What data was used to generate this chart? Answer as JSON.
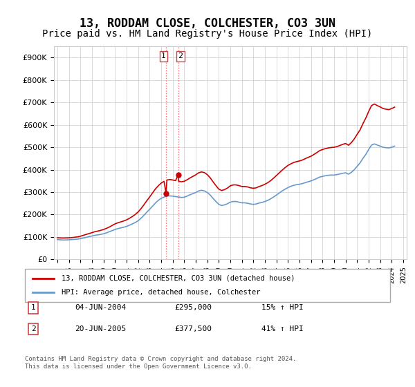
{
  "title": "13, RODDAM CLOSE, COLCHESTER, CO3 3UN",
  "subtitle": "Price paid vs. HM Land Registry's House Price Index (HPI)",
  "title_fontsize": 12,
  "subtitle_fontsize": 10,
  "ylim": [
    0,
    950000
  ],
  "yticks": [
    0,
    100000,
    200000,
    300000,
    400000,
    500000,
    600000,
    700000,
    800000,
    900000
  ],
  "ytick_labels": [
    "£0",
    "£100K",
    "£200K",
    "£300K",
    "£400K",
    "£500K",
    "£600K",
    "£700K",
    "£800K",
    "£900K"
  ],
  "red_color": "#cc0000",
  "blue_color": "#6699cc",
  "vline_color": "#ff6666",
  "vline_style": ":",
  "legend_red_label": "13, RODDAM CLOSE, COLCHESTER, CO3 3UN (detached house)",
  "legend_blue_label": "HPI: Average price, detached house, Colchester",
  "transaction1_label": "1",
  "transaction1_date": "04-JUN-2004",
  "transaction1_price": "£295,000",
  "transaction1_hpi": "15% ↑ HPI",
  "transaction1_year": 2004.42,
  "transaction1_value": 295000,
  "transaction2_label": "2",
  "transaction2_date": "20-JUN-2005",
  "transaction2_price": "£377,500",
  "transaction2_hpi": "41% ↑ HPI",
  "transaction2_year": 2005.47,
  "transaction2_value": 377500,
  "footnote": "Contains HM Land Registry data © Crown copyright and database right 2024.\nThis data is licensed under the Open Government Licence v3.0.",
  "hpi_data": {
    "years": [
      1995.0,
      1995.25,
      1995.5,
      1995.75,
      1996.0,
      1996.25,
      1996.5,
      1996.75,
      1997.0,
      1997.25,
      1997.5,
      1997.75,
      1998.0,
      1998.25,
      1998.5,
      1998.75,
      1999.0,
      1999.25,
      1999.5,
      1999.75,
      2000.0,
      2000.25,
      2000.5,
      2000.75,
      2001.0,
      2001.25,
      2001.5,
      2001.75,
      2002.0,
      2002.25,
      2002.5,
      2002.75,
      2003.0,
      2003.25,
      2003.5,
      2003.75,
      2004.0,
      2004.25,
      2004.5,
      2004.75,
      2005.0,
      2005.25,
      2005.5,
      2005.75,
      2006.0,
      2006.25,
      2006.5,
      2006.75,
      2007.0,
      2007.25,
      2007.5,
      2007.75,
      2008.0,
      2008.25,
      2008.5,
      2008.75,
      2009.0,
      2009.25,
      2009.5,
      2009.75,
      2010.0,
      2010.25,
      2010.5,
      2010.75,
      2011.0,
      2011.25,
      2011.5,
      2011.75,
      2012.0,
      2012.25,
      2012.5,
      2012.75,
      2013.0,
      2013.25,
      2013.5,
      2013.75,
      2014.0,
      2014.25,
      2014.5,
      2014.75,
      2015.0,
      2015.25,
      2015.5,
      2015.75,
      2016.0,
      2016.25,
      2016.5,
      2016.75,
      2017.0,
      2017.25,
      2017.5,
      2017.75,
      2018.0,
      2018.25,
      2018.5,
      2018.75,
      2019.0,
      2019.25,
      2019.5,
      2019.75,
      2020.0,
      2020.25,
      2020.5,
      2020.75,
      2021.0,
      2021.25,
      2021.5,
      2021.75,
      2022.0,
      2022.25,
      2022.5,
      2022.75,
      2023.0,
      2023.25,
      2023.5,
      2023.75,
      2024.0,
      2024.25
    ],
    "values": [
      88000,
      87000,
      86000,
      86500,
      87000,
      88000,
      89000,
      90000,
      92000,
      95000,
      98000,
      101000,
      104000,
      107000,
      109000,
      111000,
      114000,
      118000,
      123000,
      128000,
      133000,
      137000,
      140000,
      143000,
      147000,
      152000,
      158000,
      164000,
      172000,
      183000,
      196000,
      210000,
      223000,
      237000,
      251000,
      263000,
      272000,
      278000,
      282000,
      283000,
      282000,
      280000,
      278000,
      276000,
      277000,
      282000,
      288000,
      293000,
      298000,
      305000,
      308000,
      305000,
      298000,
      287000,
      272000,
      258000,
      245000,
      240000,
      243000,
      248000,
      255000,
      258000,
      258000,
      255000,
      252000,
      252000,
      250000,
      247000,
      245000,
      247000,
      251000,
      254000,
      258000,
      263000,
      270000,
      278000,
      287000,
      296000,
      305000,
      313000,
      320000,
      326000,
      330000,
      333000,
      335000,
      338000,
      342000,
      346000,
      350000,
      355000,
      361000,
      367000,
      370000,
      373000,
      375000,
      376000,
      376000,
      378000,
      381000,
      384000,
      386000,
      380000,
      388000,
      400000,
      415000,
      430000,
      450000,
      468000,
      490000,
      510000,
      515000,
      510000,
      505000,
      500000,
      498000,
      497000,
      500000,
      505000
    ]
  },
  "red_data": {
    "years": [
      1995.0,
      1995.25,
      1995.5,
      1995.75,
      1996.0,
      1996.25,
      1996.5,
      1996.75,
      1997.0,
      1997.25,
      1997.5,
      1997.75,
      1998.0,
      1998.25,
      1998.5,
      1998.75,
      1999.0,
      1999.25,
      1999.5,
      1999.75,
      2000.0,
      2000.25,
      2000.5,
      2000.75,
      2001.0,
      2001.25,
      2001.5,
      2001.75,
      2002.0,
      2002.25,
      2002.5,
      2002.75,
      2003.0,
      2003.25,
      2003.5,
      2003.75,
      2004.0,
      2004.25,
      2004.42,
      2004.5,
      2004.75,
      2005.0,
      2005.25,
      2005.47,
      2005.5,
      2005.75,
      2006.0,
      2006.25,
      2006.5,
      2006.75,
      2007.0,
      2007.25,
      2007.5,
      2007.75,
      2008.0,
      2008.25,
      2008.5,
      2008.75,
      2009.0,
      2009.25,
      2009.5,
      2009.75,
      2010.0,
      2010.25,
      2010.5,
      2010.75,
      2011.0,
      2011.25,
      2011.5,
      2011.75,
      2012.0,
      2012.25,
      2012.5,
      2012.75,
      2013.0,
      2013.25,
      2013.5,
      2013.75,
      2014.0,
      2014.25,
      2014.5,
      2014.75,
      2015.0,
      2015.25,
      2015.5,
      2015.75,
      2016.0,
      2016.25,
      2016.5,
      2016.75,
      2017.0,
      2017.25,
      2017.5,
      2017.75,
      2018.0,
      2018.25,
      2018.5,
      2018.75,
      2019.0,
      2019.25,
      2019.5,
      2019.75,
      2020.0,
      2020.25,
      2020.5,
      2020.75,
      2021.0,
      2021.25,
      2021.5,
      2021.75,
      2022.0,
      2022.25,
      2022.5,
      2022.75,
      2023.0,
      2023.25,
      2023.5,
      2023.75,
      2024.0,
      2024.25
    ],
    "values": [
      96000,
      95500,
      95000,
      95500,
      96000,
      97000,
      98500,
      100000,
      103000,
      107000,
      111000,
      115000,
      119000,
      123000,
      126000,
      129000,
      133000,
      138000,
      144000,
      151000,
      158000,
      163000,
      167000,
      171000,
      176000,
      183000,
      191000,
      200000,
      211000,
      226000,
      243000,
      261000,
      278000,
      296000,
      314000,
      328000,
      340000,
      348000,
      295000,
      354000,
      356000,
      354000,
      351000,
      377500,
      349000,
      346000,
      348000,
      355000,
      363000,
      370000,
      377000,
      386000,
      390000,
      387000,
      378000,
      364000,
      346000,
      329000,
      313000,
      307000,
      311000,
      318000,
      328000,
      332000,
      332000,
      329000,
      325000,
      325000,
      323000,
      319000,
      317000,
      319000,
      325000,
      329000,
      335000,
      342000,
      351000,
      362000,
      374000,
      386000,
      398000,
      409000,
      419000,
      426000,
      432000,
      436000,
      439000,
      443000,
      449000,
      455000,
      460000,
      468000,
      476000,
      485000,
      490000,
      494000,
      497000,
      499000,
      500000,
      503000,
      508000,
      513000,
      517000,
      509000,
      521000,
      537000,
      558000,
      577000,
      605000,
      630000,
      660000,
      686000,
      693000,
      686000,
      680000,
      673000,
      670000,
      668000,
      673000,
      679000
    ]
  }
}
